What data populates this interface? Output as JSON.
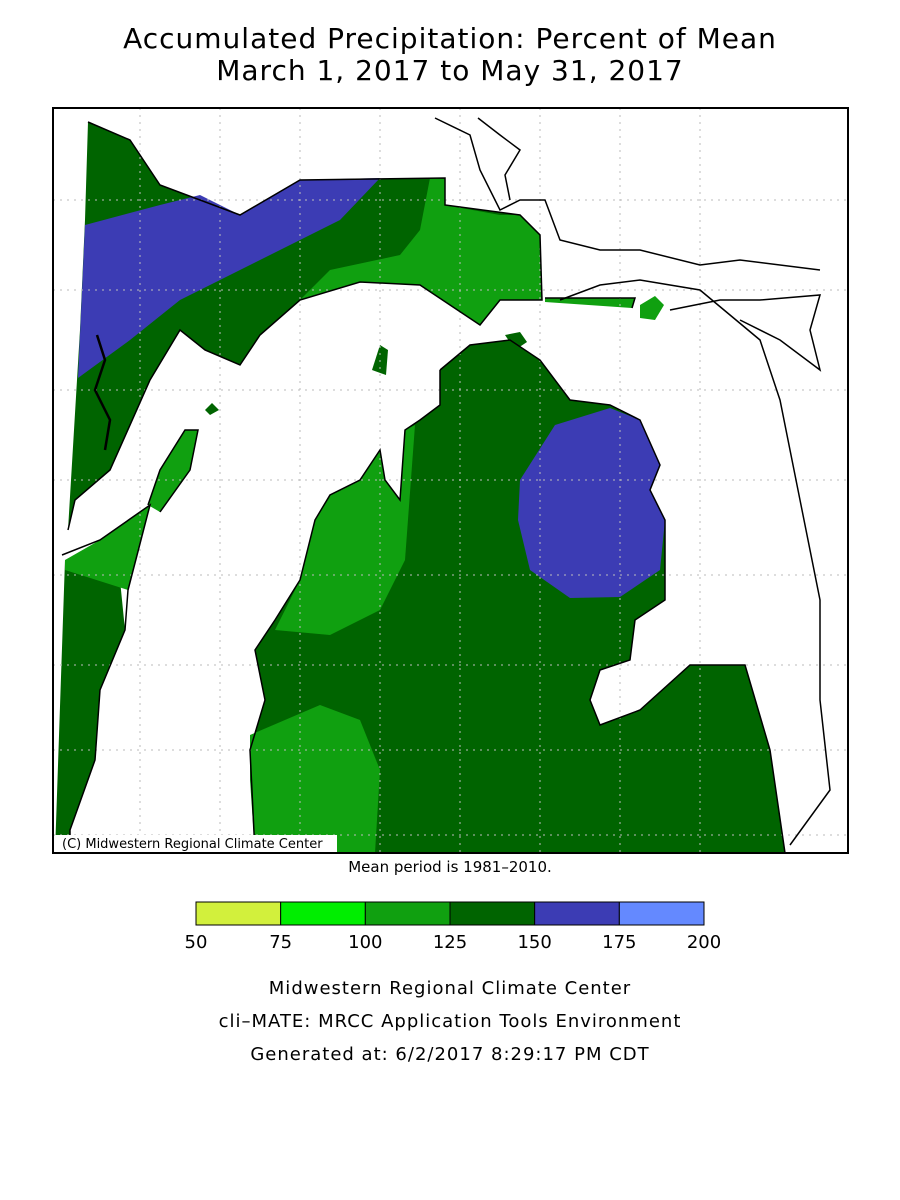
{
  "title": [
    "Accumulated Precipitation: Percent of Mean",
    "March 1, 2017 to May 31, 2017"
  ],
  "map": {
    "credit": "(C) Midwestern Regional Climate Center"
  },
  "note": "Mean period is 1981–2010.",
  "legend": {
    "ticks": [
      50,
      75,
      100,
      125,
      150,
      175,
      200
    ],
    "colors": [
      "#d2f03c",
      "#00ee00",
      "#10a010",
      "#006400",
      "#3c3cb4",
      "#6489ff"
    ]
  },
  "footer": [
    "Midwestern Regional Climate Center",
    "cli–MATE: MRCC Application Tools Environment",
    "Generated at: 6/2/2017 8:29:17 PM CDT"
  ]
}
